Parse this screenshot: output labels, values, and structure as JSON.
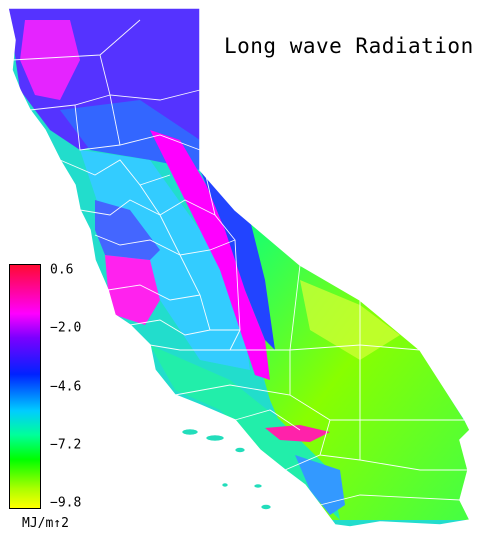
{
  "title": "Long wave Radiation",
  "legend": {
    "units": "MJ/m↑2",
    "ticks": [
      {
        "label": "0.6",
        "value": 0.6
      },
      {
        "label": "−2.0",
        "value": -2.0
      },
      {
        "label": "−4.6",
        "value": -4.6
      },
      {
        "label": "−7.2",
        "value": -7.2
      },
      {
        "label": "−9.8",
        "value": -9.8
      }
    ],
    "range": [
      -9.8,
      0.6
    ],
    "colors": [
      "#ff0a32",
      "#ff00ff",
      "#7a00ff",
      "#0022ff",
      "#00ccff",
      "#00ff99",
      "#00ff00",
      "#aaff00",
      "#ffff00"
    ]
  },
  "map": {
    "region": "California",
    "border_color": "#ffffff",
    "background_color": "#ffffff"
  }
}
